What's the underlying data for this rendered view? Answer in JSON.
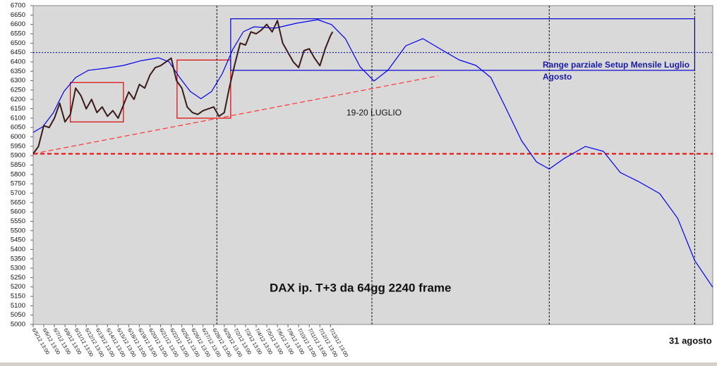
{
  "chart_data": {
    "type": "line",
    "title": "DAX ip. T+3  da 64gg 2240 frame",
    "annotations": [
      "19-20 LUGLIO",
      "Range  parziale Setup Mensile Luglio",
      "Agosto",
      "31 agosto"
    ],
    "xlim": [
      0,
      64
    ],
    "ylim": [
      5000,
      6700
    ],
    "yticks": [
      5000,
      5050,
      5100,
      5150,
      5200,
      5250,
      5300,
      5350,
      5400,
      5450,
      5500,
      5550,
      5600,
      5650,
      5700,
      5750,
      5800,
      5850,
      5900,
      5950,
      6000,
      6050,
      6100,
      6150,
      6200,
      6250,
      6300,
      6350,
      6400,
      6450,
      6500,
      6550,
      6600,
      6650,
      6700
    ],
    "xticks": [
      {
        "value": 0,
        "label": "6/5/12 13:00"
      },
      {
        "value": 1,
        "label": "6/6/12 13:00"
      },
      {
        "value": 2,
        "label": "6/7/12 13:00"
      },
      {
        "value": 3,
        "label": "6/8/12 13:00"
      },
      {
        "value": 4,
        "label": "6/11/12 13:00"
      },
      {
        "value": 5,
        "label": "6/12/12 13:00"
      },
      {
        "value": 6,
        "label": "6/13/12 13:00"
      },
      {
        "value": 7,
        "label": "6/14/12 13:00"
      },
      {
        "value": 8,
        "label": "6/15/12 13:00"
      },
      {
        "value": 9,
        "label": "6/18/12 13:00"
      },
      {
        "value": 10,
        "label": "6/19/12 13:00"
      },
      {
        "value": 11,
        "label": "6/20/12 13:00"
      },
      {
        "value": 12,
        "label": "6/21/12 13:00"
      },
      {
        "value": 13,
        "label": "6/22/12 13:00"
      },
      {
        "value": 14,
        "label": "6/25/12 13:00"
      },
      {
        "value": 15,
        "label": "6/26/12 13:00"
      },
      {
        "value": 16,
        "label": "6/27/12 13:00"
      },
      {
        "value": 17,
        "label": "6/28/12 13:00"
      },
      {
        "value": 18,
        "label": "6/29/12 13:00"
      },
      {
        "value": 19,
        "label": "7/2/12 13:00"
      },
      {
        "value": 20,
        "label": "7/3/12 13:00"
      },
      {
        "value": 21,
        "label": "7/4/12 13:00"
      },
      {
        "value": 22,
        "label": "7/5/12 13:00"
      },
      {
        "value": 23,
        "label": "7/6/12 13:00"
      },
      {
        "value": 24,
        "label": "7/9/12 13:00"
      },
      {
        "value": 25,
        "label": "7/10/12 13:00"
      },
      {
        "value": 26,
        "label": "7/11/12 13:00"
      },
      {
        "value": 27,
        "label": "7/12/12 13:00"
      },
      {
        "value": 28,
        "label": "7/13/12 13:00"
      }
    ],
    "price": {
      "color": "#3a1a1a",
      "x": [
        0,
        0.5,
        1,
        1.5,
        2,
        2.5,
        3,
        3.5,
        4,
        4.5,
        5,
        5.5,
        6,
        6.5,
        7,
        7.5,
        8,
        8.5,
        9,
        9.5,
        10,
        10.5,
        11,
        11.5,
        12,
        12.5,
        13,
        13.5,
        14,
        14.5,
        15,
        15.5,
        16,
        16.5,
        17,
        17.5,
        18,
        18.5,
        19,
        19.5,
        20,
        20.5,
        21,
        21.5,
        22,
        22.5,
        23,
        23.5,
        24,
        24.5,
        25,
        25.5,
        26,
        26.5,
        27,
        27.5,
        28,
        28.2
      ],
      "values": [
        5910,
        5950,
        6060,
        6050,
        6100,
        6180,
        6080,
        6120,
        6260,
        6220,
        6150,
        6200,
        6130,
        6160,
        6110,
        6140,
        6100,
        6170,
        6240,
        6200,
        6280,
        6260,
        6330,
        6370,
        6380,
        6400,
        6420,
        6300,
        6260,
        6160,
        6130,
        6120,
        6140,
        6150,
        6160,
        6110,
        6130,
        6270,
        6390,
        6500,
        6490,
        6560,
        6550,
        6570,
        6600,
        6560,
        6620,
        6500,
        6450,
        6400,
        6370,
        6460,
        6470,
        6420,
        6380,
        6470,
        6540,
        6560
      ]
    },
    "projection": {
      "color": "#0000ee",
      "x": [
        0,
        0.9,
        1.9,
        2.9,
        4,
        5.2,
        6.8,
        8.5,
        10.2,
        11.8,
        12.8,
        13.8,
        14.8,
        15.8,
        16.8,
        17.8,
        18.8,
        19.8,
        20.8,
        22.8,
        24.8,
        26.8,
        28.1,
        29.4,
        30.8,
        32.1,
        33.4,
        35.1,
        36.7,
        38.4,
        40.1,
        41.7,
        43.1,
        44.4,
        46,
        47.4,
        48.6,
        50,
        52,
        53.7,
        55.3,
        57,
        59,
        60.7,
        62.3,
        64
      ],
      "values": [
        6024,
        6054,
        6129,
        6242,
        6317,
        6355,
        6366,
        6381,
        6407,
        6422,
        6400,
        6317,
        6242,
        6204,
        6242,
        6336,
        6467,
        6561,
        6587,
        6580,
        6606,
        6625,
        6599,
        6524,
        6373,
        6298,
        6355,
        6486,
        6524,
        6467,
        6411,
        6381,
        6317,
        6167,
        5979,
        5867,
        5829,
        5885,
        5949,
        5923,
        5810,
        5762,
        5698,
        5566,
        5341,
        5198
      ]
    },
    "hlines": [
      {
        "value": 5910,
        "color": "#ee0000"
      },
      {
        "value": 6450,
        "color": "#0000cc"
      }
    ],
    "vlines": [
      17.3,
      31.9,
      48.6,
      62.3
    ],
    "boxes": [
      {
        "x": [
          3.5,
          8.5
        ],
        "y": [
          6080,
          6290
        ],
        "color": "#dd0000"
      },
      {
        "x": [
          13.55,
          18.6
        ],
        "y": [
          6100,
          6410
        ],
        "color": "#dd0000"
      },
      {
        "x": [
          18.6,
          62.3
        ],
        "y": [
          6355,
          6630
        ],
        "color": "#0000cc"
      }
    ],
    "trend": {
      "x": [
        0,
        38.1
      ],
      "y": [
        5910,
        6325
      ],
      "color": "#ff3333"
    }
  }
}
